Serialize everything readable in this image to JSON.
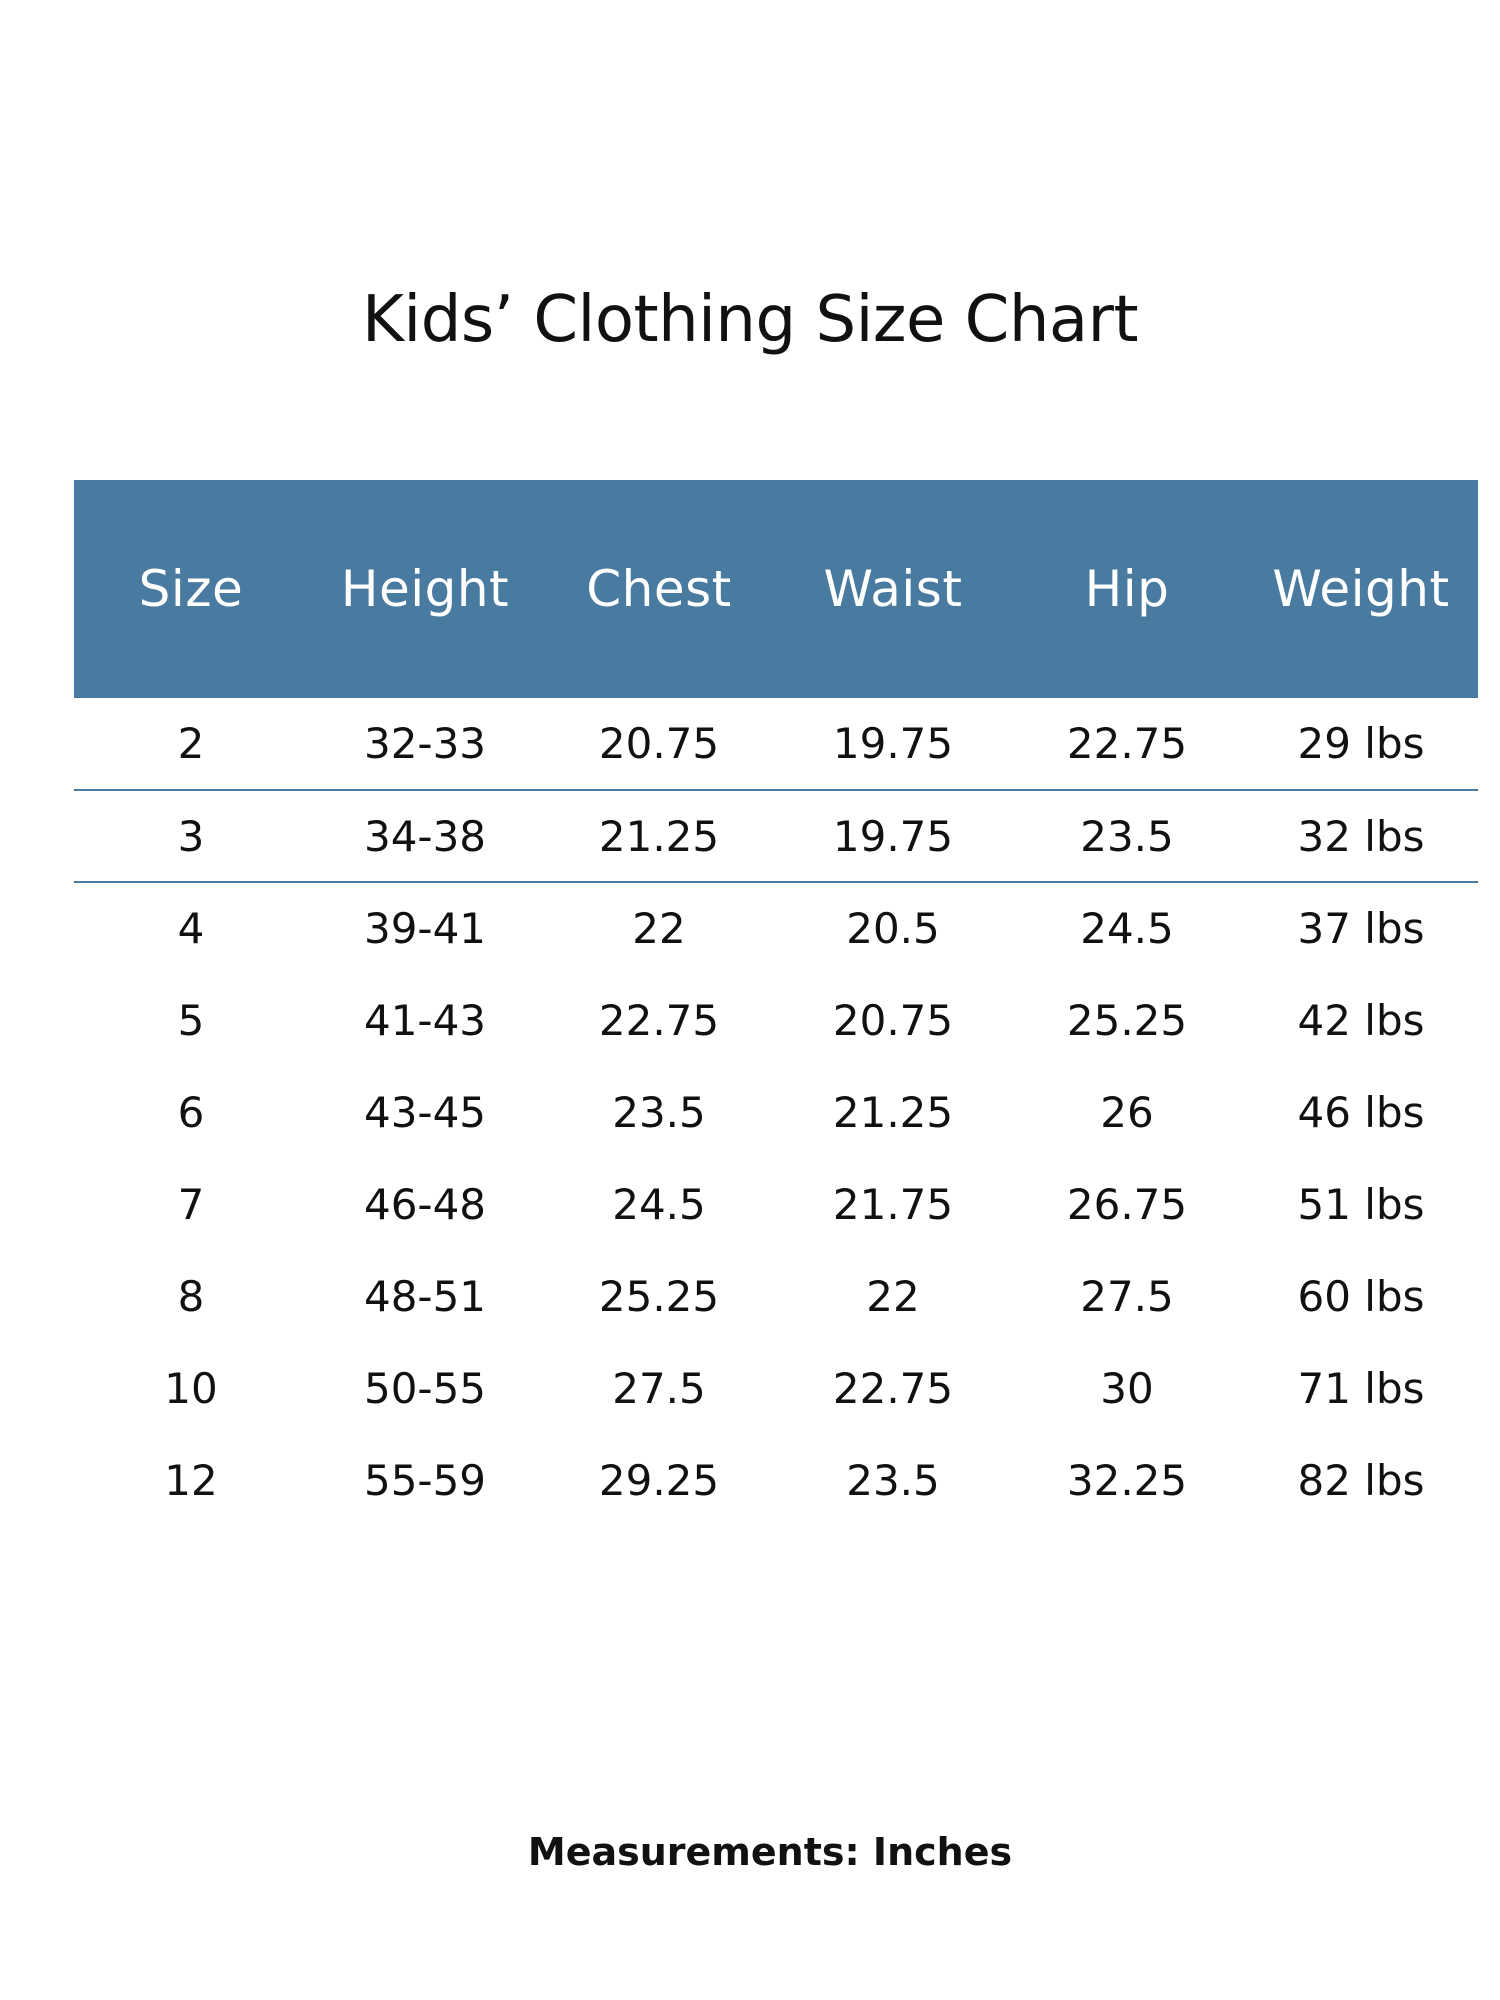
{
  "title": "Kids’ Clothing Size Chart",
  "footer": "Measurements: Inches",
  "colors": {
    "header_background": "#497aa0",
    "header_text": "#ffffff",
    "row_separator": "#497aa0"
  },
  "chart_data": {
    "type": "table",
    "title": "Kids’ Clothing Size Chart",
    "columns": [
      "Size",
      "Height",
      "Chest",
      "Waist",
      "Hip",
      "Weight"
    ],
    "rows": [
      [
        "2",
        "32-33",
        "20.75",
        "19.75",
        "22.75",
        "29 lbs"
      ],
      [
        "3",
        "34-38",
        "21.25",
        "19.75",
        "23.5",
        "32 lbs"
      ],
      [
        "4",
        "39-41",
        "22",
        "20.5",
        "24.5",
        "37 lbs"
      ],
      [
        "5",
        "41-43",
        "22.75",
        "20.75",
        "25.25",
        "42 lbs"
      ],
      [
        "6",
        "43-45",
        "23.5",
        "21.25",
        "26",
        "46 lbs"
      ],
      [
        "7",
        "46-48",
        "24.5",
        "21.75",
        "26.75",
        "51 lbs"
      ],
      [
        "8",
        "48-51",
        "25.25",
        "22",
        "27.5",
        "60 lbs"
      ],
      [
        "10",
        "50-55",
        "27.5",
        "22.75",
        "30",
        "71 lbs"
      ],
      [
        "12",
        "55-59",
        "29.25",
        "23.5",
        "32.25",
        "82 lbs"
      ]
    ],
    "note": "Measurements: Inches"
  }
}
